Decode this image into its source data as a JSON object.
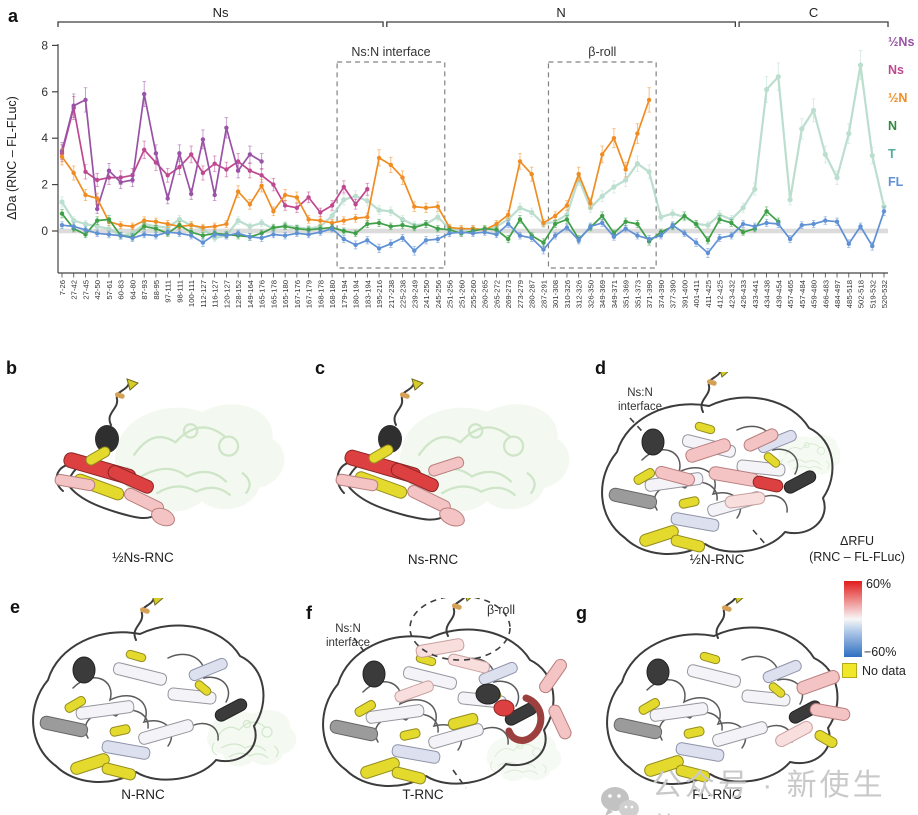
{
  "panel_a": {
    "label": "a"
  },
  "chart_data": {
    "type": "line",
    "title": "",
    "xlabel": "",
    "ylabel": "ΔDa (RNC – FL-FLuc)",
    "ylim": [
      -1.8,
      8
    ],
    "yticks": [
      0,
      2,
      4,
      6,
      8
    ],
    "grid": false,
    "zero_band": true,
    "legend_position": "right",
    "categories": [
      "7-26",
      "27-42",
      "27-45",
      "42-50",
      "57-61",
      "60-83",
      "64-80",
      "87-93",
      "88-95",
      "97-111",
      "98-111",
      "100-111",
      "112-127",
      "116-127",
      "120-127",
      "128-152",
      "149-164",
      "165-176",
      "165-178",
      "165-180",
      "167-176",
      "167-179",
      "168-178",
      "168-180",
      "179-194",
      "180-194",
      "183-194",
      "195-216",
      "217-238",
      "225-238",
      "239-249",
      "241-250",
      "245-256",
      "251-256",
      "251-260",
      "255-260",
      "260-265",
      "265-272",
      "269-273",
      "273-279",
      "280-287",
      "287-291",
      "301-308",
      "310-326",
      "312-326",
      "326-350",
      "349-369",
      "349-371",
      "351-369",
      "351-373",
      "371-390",
      "374-390",
      "377-390",
      "391-400",
      "401-411",
      "411-425",
      "412-425",
      "423-432",
      "426-433",
      "433-441",
      "434-438",
      "439-454",
      "457-465",
      "457-484",
      "459-480",
      "466-483",
      "484-497",
      "485-518",
      "502-518",
      "519-532",
      "520-532"
    ],
    "series": [
      {
        "name": "½Ns",
        "color": "#9952a6",
        "values": [
          3.45,
          5.4,
          5.65,
          0.95,
          2.6,
          2.1,
          2.2,
          5.9,
          3.35,
          1.4,
          3.35,
          1.6,
          3.95,
          1.55,
          4.45,
          2.6,
          3.3,
          3.0,
          null,
          null,
          null,
          null,
          null,
          null,
          null,
          null,
          null,
          null,
          null,
          null,
          null,
          null,
          null,
          null,
          null,
          null,
          null,
          null,
          null,
          null,
          null,
          null,
          null,
          null,
          null,
          null,
          null,
          null,
          null,
          null,
          null,
          null,
          null,
          null,
          null,
          null,
          null,
          null,
          null,
          null,
          null,
          null,
          null,
          null,
          null,
          null,
          null,
          null,
          null,
          null,
          null
        ]
      },
      {
        "name": "Ns",
        "color": "#c04890",
        "values": [
          3.35,
          5.3,
          2.55,
          2.2,
          2.3,
          2.3,
          2.4,
          3.5,
          2.95,
          2.4,
          2.75,
          3.3,
          2.5,
          2.9,
          2.65,
          3.0,
          2.6,
          2.4,
          2.0,
          1.1,
          1.0,
          1.45,
          0.8,
          1.1,
          1.9,
          1.15,
          1.8,
          null,
          null,
          null,
          null,
          null,
          null,
          null,
          null,
          null,
          null,
          null,
          null,
          null,
          null,
          null,
          null,
          null,
          null,
          null,
          null,
          null,
          null,
          null,
          null,
          null,
          null,
          null,
          null,
          null,
          null,
          null,
          null,
          null,
          null,
          null,
          null,
          null,
          null,
          null,
          null,
          null,
          null,
          null,
          null
        ]
      },
      {
        "name": "½N",
        "color": "#f08d22",
        "values": [
          3.2,
          2.5,
          1.55,
          1.4,
          0.4,
          0.25,
          0.2,
          0.45,
          0.4,
          0.3,
          0.2,
          0.25,
          0.15,
          0.2,
          0.3,
          1.7,
          1.15,
          1.95,
          0.85,
          1.55,
          1.45,
          0.5,
          0.45,
          0.35,
          0.45,
          0.55,
          0.6,
          3.15,
          2.85,
          2.3,
          1.05,
          1.0,
          1.05,
          0.15,
          0.1,
          0.1,
          0.05,
          0.3,
          0.7,
          3.0,
          2.45,
          0.35,
          0.65,
          1.1,
          2.45,
          1.2,
          3.3,
          4.0,
          2.65,
          4.2,
          5.65,
          null,
          null,
          null,
          null,
          null,
          null,
          null,
          null,
          null,
          null,
          null,
          null,
          null,
          null,
          null,
          null,
          null,
          null,
          null,
          null
        ]
      },
      {
        "name": "N",
        "color": "#3fa048",
        "legend_color": "#2e8b3f",
        "values": [
          0.75,
          0.1,
          -0.15,
          0.45,
          0.5,
          -0.2,
          -0.25,
          0.2,
          0.1,
          -0.1,
          0.25,
          -0.05,
          -0.2,
          -0.1,
          -0.15,
          -0.2,
          -0.25,
          -0.1,
          0.15,
          0.2,
          0.1,
          0.05,
          0.1,
          0.15,
          0.0,
          -0.1,
          0.3,
          0.35,
          0.2,
          0.25,
          0.15,
          0.3,
          0.1,
          0.05,
          -0.1,
          0.0,
          0.1,
          0.05,
          -0.35,
          0.5,
          -0.2,
          -0.5,
          0.3,
          0.5,
          -0.35,
          0.15,
          0.65,
          -0.1,
          0.4,
          0.3,
          -0.45,
          -0.05,
          0.2,
          0.65,
          0.3,
          -0.4,
          0.5,
          0.35,
          -0.05,
          0.1,
          0.85,
          0.4,
          null,
          null,
          null,
          null,
          null,
          null,
          null,
          null,
          null
        ]
      },
      {
        "name": "T",
        "color": "#abd6c4",
        "legend_color": "#53ae99",
        "values": [
          1.25,
          0.45,
          0.3,
          0.2,
          0.1,
          -0.2,
          -0.1,
          0.3,
          0.2,
          0.15,
          0.5,
          0.25,
          0.1,
          -0.3,
          -0.2,
          0.45,
          0.2,
          0.35,
          0.1,
          0.25,
          0.15,
          0.1,
          0.2,
          0.65,
          1.35,
          1.5,
          1.3,
          0.9,
          0.85,
          0.5,
          0.25,
          0.3,
          0.6,
          0.1,
          0.05,
          0.1,
          0.05,
          0.2,
          0.5,
          1.0,
          0.8,
          0.3,
          0.4,
          0.7,
          2.25,
          1.0,
          1.5,
          1.9,
          2.2,
          2.9,
          2.55,
          0.6,
          0.75,
          0.6,
          0.3,
          0.25,
          0.7,
          0.5,
          1.0,
          1.8,
          6.1,
          6.65,
          1.35,
          4.4,
          5.2,
          3.3,
          2.3,
          4.2,
          7.15,
          3.25,
          1.05
        ]
      },
      {
        "name": "FL",
        "color": "#6091d4",
        "values": [
          0.25,
          0.2,
          0.05,
          -0.1,
          -0.15,
          -0.2,
          -0.3,
          -0.15,
          -0.2,
          -0.05,
          -0.1,
          -0.2,
          -0.5,
          -0.15,
          -0.2,
          -0.1,
          -0.25,
          -0.3,
          -0.15,
          -0.2,
          -0.1,
          -0.15,
          -0.05,
          0.1,
          -0.35,
          -0.6,
          -0.4,
          -0.75,
          -0.55,
          -0.3,
          -0.85,
          -0.4,
          -0.35,
          -0.1,
          -0.05,
          -0.1,
          -0.05,
          -0.15,
          0.3,
          -0.2,
          -0.3,
          -0.8,
          -0.2,
          0.15,
          -0.4,
          0.2,
          0.35,
          -0.25,
          0.1,
          -0.2,
          -0.35,
          -0.2,
          0.25,
          -0.1,
          -0.5,
          -0.95,
          -0.3,
          -0.2,
          0.3,
          0.2,
          0.35,
          0.3,
          -0.35,
          0.25,
          0.3,
          0.45,
          0.4,
          -0.55,
          0.2,
          -0.65,
          0.85
        ]
      }
    ],
    "region_brackets": [
      {
        "label": "Ns",
        "from_index": 0,
        "to_index": 27
      },
      {
        "label": "N",
        "from_index": 28,
        "to_index": 57
      },
      {
        "label": "C",
        "from_index": 58,
        "to_index": 70
      }
    ],
    "annotation_boxes": [
      {
        "label": "Ns:N interface",
        "from_index": 23,
        "to_index": 32
      },
      {
        "label": "β-roll",
        "from_index": 41,
        "to_index": 50
      }
    ]
  },
  "panels": {
    "b": {
      "label": "b",
      "caption": "½Ns-RNC"
    },
    "c": {
      "label": "c",
      "caption": "Ns-RNC"
    },
    "d": {
      "label": "d",
      "caption": "½N-RNC",
      "ann_line1": "Ns:N",
      "ann_line2": "interface"
    },
    "e": {
      "label": "e",
      "caption": "N-RNC"
    },
    "f": {
      "label": "f",
      "caption": "T-RNC",
      "ann_line1": "Ns:N",
      "ann_line2": "interface",
      "ann_broll": "β-roll"
    },
    "g": {
      "label": "g",
      "caption": "FL-RNC"
    }
  },
  "color_legend": {
    "title_line1": "ΔRFU",
    "title_line2": "(RNC – FL-FLuc)",
    "max_label": "60%",
    "min_label": "−60%",
    "no_data_label": "No data",
    "no_data_color": "#f0e72a",
    "top_color": "#e01c1c",
    "bottom_color": "#2f6fc1"
  },
  "watermark": {
    "text": "公众号 · 新使生物"
  }
}
